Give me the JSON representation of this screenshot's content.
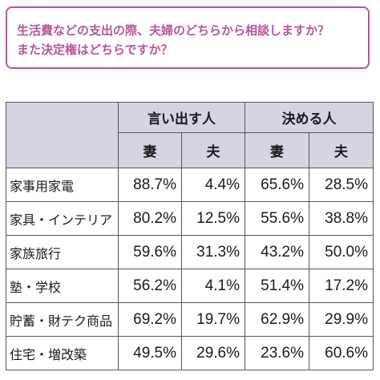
{
  "question": {
    "line1": "生活費などの支出の際、夫婦のどちらから相談しますか？",
    "line2": "また決定権はどちらですか？"
  },
  "table": {
    "group_headers": [
      "言い出す人",
      "決める人"
    ],
    "sub_headers": [
      "妻",
      "夫",
      "妻",
      "夫"
    ],
    "rows": [
      {
        "label": "家事用家電",
        "values": [
          "88.7%",
          "4.4%",
          "65.6%",
          "28.5%"
        ]
      },
      {
        "label": "家具・インテリア",
        "values": [
          "80.2%",
          "12.5%",
          "55.6%",
          "38.8%"
        ]
      },
      {
        "label": "家族旅行",
        "values": [
          "59.6%",
          "31.3%",
          "43.2%",
          "50.0%"
        ]
      },
      {
        "label": "塾・学校",
        "values": [
          "56.2%",
          "4.1%",
          "51.4%",
          "17.2%"
        ]
      },
      {
        "label": "貯蓄・財テク商品",
        "values": [
          "69.2%",
          "19.7%",
          "62.9%",
          "29.9%"
        ]
      },
      {
        "label": "住宅・増改築",
        "values": [
          "49.5%",
          "29.6%",
          "23.6%",
          "60.6%"
        ]
      }
    ]
  },
  "colors": {
    "accent": "#b7559a",
    "header_bg": "#d4d4e2"
  }
}
